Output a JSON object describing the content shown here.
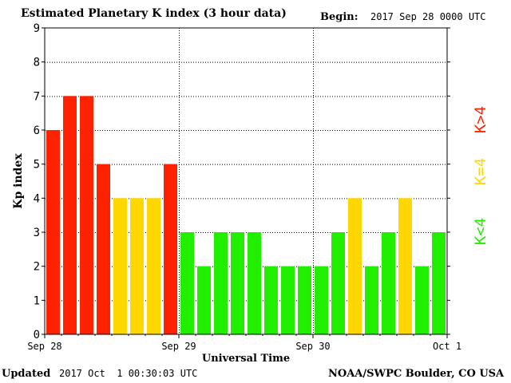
{
  "header": {
    "title": "Estimated Planetary K index (3 hour data)",
    "begin_label": "Begin:",
    "begin_value": "2017 Sep 28 0000 UTC"
  },
  "footer": {
    "updated_label": "Updated",
    "updated_value": "2017 Oct  1 00:30:03 UTC",
    "source": "NOAA/SWPC Boulder, CO USA"
  },
  "colors": {
    "high": "#ff2200",
    "mid": "#ffd700",
    "low": "#22ee00"
  },
  "legend": [
    {
      "label": "K>4",
      "color": "#ff2200"
    },
    {
      "label": "K=4",
      "color": "#ffd700"
    },
    {
      "label": "K<4",
      "color": "#22ee00"
    }
  ],
  "chart_data": {
    "type": "bar",
    "title": "Estimated Planetary K index (3 hour data)",
    "xlabel": "Universal Time",
    "ylabel": "Kp index",
    "ylim": [
      0,
      9
    ],
    "yticks": [
      0,
      1,
      2,
      3,
      4,
      5,
      6,
      7,
      8,
      9
    ],
    "xticks": [
      "Sep 28",
      "Sep 29",
      "Sep 30",
      "Oct 1"
    ],
    "grid": true,
    "values": [
      6,
      7,
      7,
      5,
      4,
      4,
      4,
      5,
      3,
      2,
      3,
      3,
      3,
      2,
      2,
      2,
      2,
      3,
      4,
      2,
      3,
      4,
      2,
      3
    ]
  }
}
